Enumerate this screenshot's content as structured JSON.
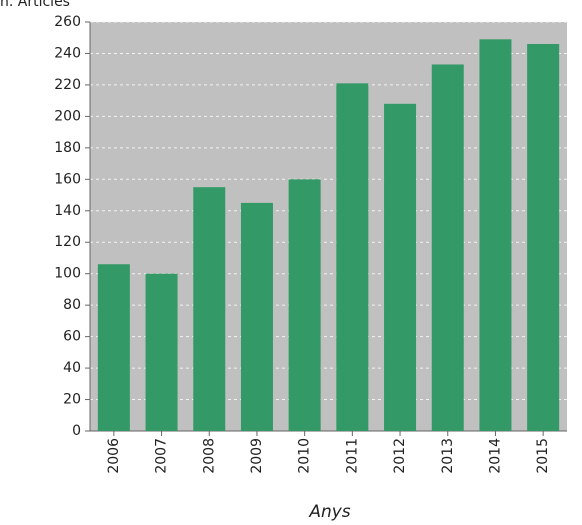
{
  "chart_data": {
    "type": "bar",
    "y_label": "n. Articles",
    "x_label": "Anys",
    "categories": [
      "2006",
      "2007",
      "2008",
      "2009",
      "2010",
      "2011",
      "2012",
      "2013",
      "2014",
      "2015"
    ],
    "values": [
      106,
      100,
      155,
      145,
      160,
      221,
      208,
      233,
      249,
      246
    ],
    "color": "#339966",
    "ylim": [
      0,
      260
    ],
    "yticks": [
      0,
      20,
      40,
      60,
      80,
      100,
      120,
      140,
      160,
      180,
      200,
      220,
      240,
      260
    ],
    "grid": true
  }
}
